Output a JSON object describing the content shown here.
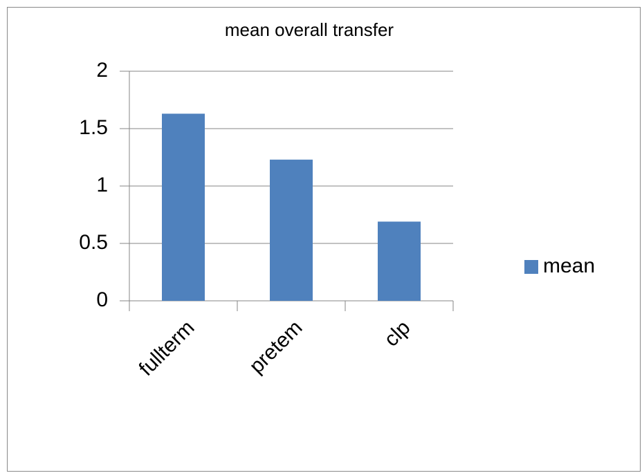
{
  "chart_data": {
    "type": "bar",
    "title": "mean overall transfer",
    "categories": [
      "fullterm",
      "pretem",
      "clp"
    ],
    "series": [
      {
        "name": "mean",
        "color": "#4f81bd",
        "values": [
          1.63,
          1.23,
          0.69
        ]
      }
    ],
    "ylim": [
      0,
      2
    ],
    "yticks": [
      0,
      0.5,
      1,
      1.5,
      2
    ],
    "grid": true,
    "legend": "right"
  }
}
